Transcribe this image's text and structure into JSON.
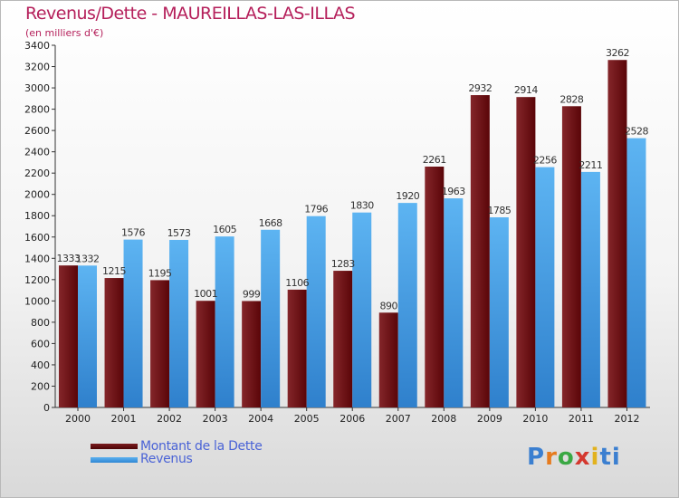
{
  "title": "Revenus/Dette - MAUREILLAS-LAS-ILLAS",
  "subtitle": "(en milliers d'€)",
  "colors": {
    "debt": "#6b0f12",
    "revenue": "#3f9be3",
    "title": "#b5205b",
    "legend_text": "#4a63d6"
  },
  "chart_data": {
    "type": "bar",
    "categories": [
      "2000",
      "2001",
      "2002",
      "2003",
      "2004",
      "2005",
      "2006",
      "2007",
      "2008",
      "2009",
      "2010",
      "2011",
      "2012"
    ],
    "series": [
      {
        "name": "Montant de la Dette",
        "values": [
          1333,
          1215,
          1195,
          1001,
          999,
          1106,
          1283,
          890,
          2261,
          2932,
          2914,
          2828,
          3262
        ]
      },
      {
        "name": "Revenus",
        "values": [
          1332,
          1576,
          1573,
          1605,
          1668,
          1796,
          1830,
          1920,
          1963,
          1785,
          2256,
          2211,
          2528
        ]
      }
    ],
    "data_labels": [
      [
        "1333",
        "1215",
        "1195",
        "1001",
        "999",
        "1106",
        "1283",
        "890",
        "2261",
        "2932",
        "2914",
        "2828",
        "3262"
      ],
      [
        "1332",
        "1576",
        "1573",
        "1605",
        "1668",
        "1796",
        "1830",
        "1920",
        "1963",
        "1785",
        "2256",
        "2211",
        "2528"
      ]
    ],
    "yticks": [
      "0",
      "200",
      "400",
      "600",
      "800",
      "1000",
      "1200",
      "1400",
      "1600",
      "1800",
      "2000",
      "2200",
      "2400",
      "2600",
      "2800",
      "3000",
      "3200",
      "3400"
    ],
    "ylim": [
      0,
      3400
    ],
    "grid": false,
    "legend_position": "bottom-left"
  },
  "logo": {
    "letters": [
      "P",
      "r",
      "o",
      "x",
      "i",
      "t",
      "i"
    ]
  }
}
